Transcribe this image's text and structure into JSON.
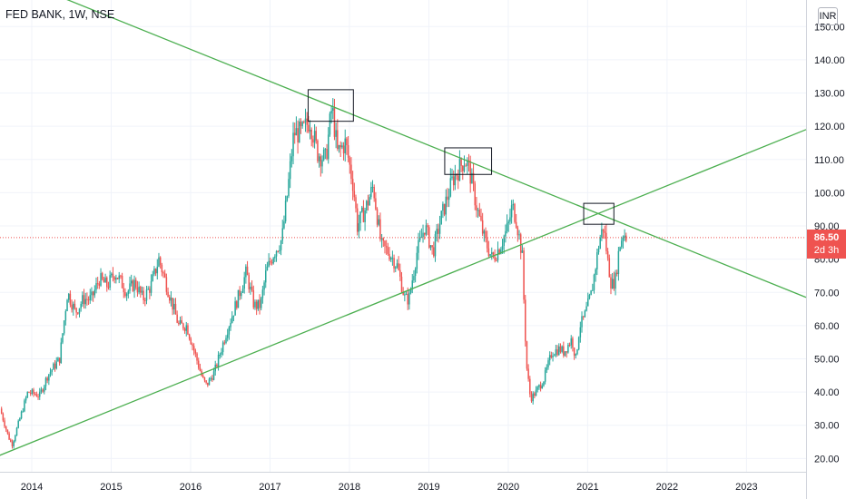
{
  "header": {
    "symbol_title": "FED BANK, 1W, NSE",
    "currency": "INR"
  },
  "price_label": {
    "value": "86.50",
    "countdown": "2d 3h"
  },
  "colors": {
    "up": "#26a69a",
    "down": "#ef5350",
    "trendline": "#4caf50",
    "price_line": "#ef5350",
    "grid": "#f0f3fa",
    "axis_text": "#131722"
  },
  "chart_data": {
    "type": "candlestick",
    "title": "FED BANK, 1W, NSE",
    "x_axis": {
      "tick_labels": [
        "2014",
        "2015",
        "2016",
        "2017",
        "2018",
        "2019",
        "2020",
        "2021",
        "2022",
        "2023"
      ],
      "range": [
        2013.6,
        2023.75
      ]
    },
    "y_axis": {
      "tick_labels": [
        "20.00",
        "30.00",
        "40.00",
        "50.00",
        "60.00",
        "70.00",
        "80.00",
        "90.00",
        "100.00",
        "110.00",
        "120.00",
        "130.00",
        "140.00",
        "150.00"
      ],
      "range": [
        16,
        158
      ],
      "currency": "INR"
    },
    "last_price": 86.5,
    "price_path": [
      [
        2013.6,
        35
      ],
      [
        2013.7,
        27
      ],
      [
        2013.75,
        24
      ],
      [
        2013.85,
        32
      ],
      [
        2013.95,
        40
      ],
      [
        2014.1,
        39
      ],
      [
        2014.2,
        45
      ],
      [
        2014.35,
        50
      ],
      [
        2014.45,
        70
      ],
      [
        2014.55,
        64
      ],
      [
        2014.65,
        68
      ],
      [
        2014.75,
        68
      ],
      [
        2014.85,
        74
      ],
      [
        2014.95,
        72
      ],
      [
        2015.05,
        76
      ],
      [
        2015.1,
        74
      ],
      [
        2015.2,
        70
      ],
      [
        2015.3,
        73
      ],
      [
        2015.4,
        68
      ],
      [
        2015.5,
        72
      ],
      [
        2015.6,
        80
      ],
      [
        2015.75,
        68
      ],
      [
        2015.85,
        60
      ],
      [
        2015.95,
        60
      ],
      [
        2016.05,
        52
      ],
      [
        2016.15,
        44
      ],
      [
        2016.2,
        42
      ],
      [
        2016.3,
        46
      ],
      [
        2016.45,
        58
      ],
      [
        2016.55,
        65
      ],
      [
        2016.7,
        76
      ],
      [
        2016.8,
        66
      ],
      [
        2016.88,
        66
      ],
      [
        2016.95,
        76
      ],
      [
        2017.05,
        82
      ],
      [
        2017.15,
        86
      ],
      [
        2017.22,
        100
      ],
      [
        2017.3,
        118
      ],
      [
        2017.4,
        118
      ],
      [
        2017.5,
        122
      ],
      [
        2017.6,
        112
      ],
      [
        2017.7,
        110
      ],
      [
        2017.78,
        126
      ],
      [
        2017.85,
        112
      ],
      [
        2017.95,
        115
      ],
      [
        2018.05,
        102
      ],
      [
        2018.1,
        90
      ],
      [
        2018.2,
        95
      ],
      [
        2018.3,
        102
      ],
      [
        2018.4,
        84
      ],
      [
        2018.5,
        82
      ],
      [
        2018.6,
        78
      ],
      [
        2018.7,
        68
      ],
      [
        2018.75,
        68
      ],
      [
        2018.85,
        82
      ],
      [
        2018.95,
        90
      ],
      [
        2019.05,
        82
      ],
      [
        2019.15,
        92
      ],
      [
        2019.2,
        96
      ],
      [
        2019.3,
        104
      ],
      [
        2019.4,
        108
      ],
      [
        2019.45,
        110
      ],
      [
        2019.5,
        108
      ],
      [
        2019.6,
        96
      ],
      [
        2019.7,
        86
      ],
      [
        2019.8,
        80
      ],
      [
        2019.9,
        84
      ],
      [
        2020.0,
        90
      ],
      [
        2020.05,
        96
      ],
      [
        2020.1,
        92
      ],
      [
        2020.15,
        85
      ],
      [
        2020.18,
        80
      ],
      [
        2020.2,
        65
      ],
      [
        2020.23,
        48
      ],
      [
        2020.28,
        38
      ],
      [
        2020.35,
        40
      ],
      [
        2020.45,
        44
      ],
      [
        2020.55,
        52
      ],
      [
        2020.65,
        53
      ],
      [
        2020.7,
        52
      ],
      [
        2020.75,
        54
      ],
      [
        2020.8,
        56
      ],
      [
        2020.85,
        50
      ],
      [
        2020.9,
        60
      ],
      [
        2020.95,
        62
      ],
      [
        2021.0,
        66
      ],
      [
        2021.05,
        70
      ],
      [
        2021.1,
        78
      ],
      [
        2021.15,
        86
      ],
      [
        2021.2,
        90
      ],
      [
        2021.25,
        80
      ],
      [
        2021.3,
        72
      ],
      [
        2021.35,
        74
      ],
      [
        2021.4,
        84
      ],
      [
        2021.45,
        88
      ],
      [
        2021.5,
        86.5
      ]
    ],
    "trendlines": [
      {
        "from": [
          2014.25,
          160
        ],
        "to": [
          2023.75,
          68.5
        ]
      },
      {
        "from": [
          2013.55,
          20.5
        ],
        "to": [
          2023.75,
          119
        ]
      }
    ],
    "boxes": [
      {
        "x0": 2017.48,
        "x1": 2018.05,
        "y0": 121.5,
        "y1": 131
      },
      {
        "x0": 2019.2,
        "x1": 2019.79,
        "y0": 105.5,
        "y1": 113.5
      },
      {
        "x0": 2020.95,
        "x1": 2021.33,
        "y0": 90.5,
        "y1": 96.8
      }
    ]
  }
}
